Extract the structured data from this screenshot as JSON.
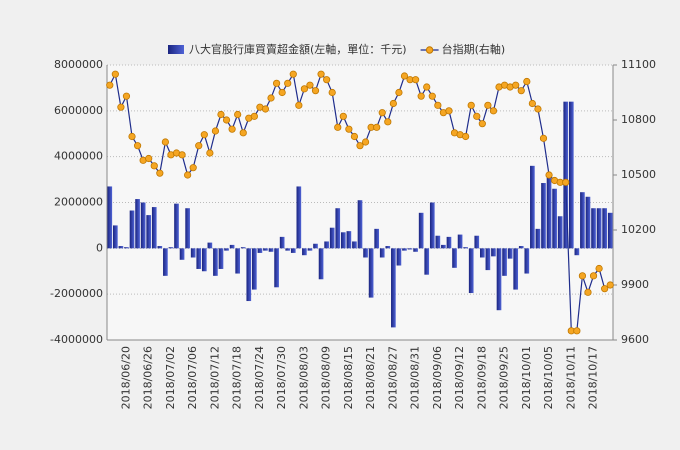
{
  "chart_data": {
    "type": "bar_line",
    "categories": [
      null,
      null,
      null,
      "2018/06/20",
      null,
      null,
      null,
      "2018/06/26",
      null,
      null,
      null,
      "2018/07/02",
      null,
      null,
      null,
      "2018/07/06",
      null,
      null,
      null,
      "2018/07/12",
      null,
      null,
      null,
      "2018/07/18",
      null,
      null,
      null,
      "2018/07/24",
      null,
      null,
      null,
      "2018/07/30",
      null,
      null,
      null,
      "2018/08/03",
      null,
      null,
      null,
      "2018/08/09",
      null,
      null,
      null,
      "2018/08/15",
      null,
      null,
      null,
      "2018/08/21",
      null,
      null,
      null,
      "2018/08/27",
      null,
      null,
      null,
      "2018/08/31",
      null,
      null,
      null,
      "2018/09/06",
      null,
      null,
      null,
      "2018/09/12",
      null,
      null,
      null,
      "2018/09/18",
      null,
      null,
      null,
      "2018/09/25",
      null,
      null,
      null,
      "2018/10/01",
      null,
      null,
      null,
      "2018/10/05",
      null,
      null,
      null,
      "2018/10/11",
      null,
      null,
      null,
      "2018/10/17",
      null,
      null,
      null
    ],
    "series": [
      {
        "name": "八大官股行庫買賣超金額(左軸，單位：千元)",
        "type": "bar",
        "color": "#2a3a9e",
        "values": [
          2700000,
          1000000,
          100000,
          50000,
          1650000,
          2150000,
          2000000,
          1450000,
          1800000,
          100000,
          -1200000,
          50000,
          1950000,
          -500000,
          1750000,
          -400000,
          -900000,
          -1000000,
          250000,
          -1200000,
          -900000,
          -100000,
          150000,
          -1100000,
          50000,
          -2300000,
          -1800000,
          -200000,
          -100000,
          -150000,
          -1700000,
          500000,
          -100000,
          -200000,
          2700000,
          -300000,
          -100000,
          200000,
          -1350000,
          300000,
          900000,
          1750000,
          700000,
          750000,
          300000,
          2100000,
          -400000,
          -2150000,
          850000,
          -400000,
          100000,
          -3450000,
          -750000,
          -100000,
          -50000,
          -150000,
          1550000,
          -1150000,
          2000000,
          550000,
          150000,
          500000,
          -850000,
          600000,
          50000,
          -1950000,
          550000,
          -400000,
          -950000,
          -350000,
          -2700000,
          -1200000,
          -450000,
          -1800000,
          100000,
          -1100000,
          3600000,
          850000,
          2850000,
          3300000,
          2600000,
          1400000,
          6400000,
          6400000,
          -300000,
          2450000,
          2250000,
          1750000,
          1750000,
          1750000,
          1550000
        ]
      },
      {
        "name": "台指期(右軸)",
        "type": "line",
        "axis": "y2",
        "color": "#1f2d8c",
        "marker_color": "#f5a623",
        "values": [
          10990,
          11050,
          10870,
          10930,
          10710,
          10660,
          10580,
          10590,
          10550,
          10510,
          10680,
          10610,
          10620,
          10610,
          10500,
          10540,
          10660,
          10720,
          10620,
          10740,
          10830,
          10800,
          10750,
          10830,
          10730,
          10810,
          10820,
          10870,
          10860,
          10920,
          11000,
          10950,
          11000,
          11050,
          10880,
          10970,
          10990,
          10960,
          11050,
          11020,
          10950,
          10760,
          10820,
          10750,
          10710,
          10660,
          10680,
          10760,
          10760,
          10840,
          10790,
          10890,
          10950,
          11040,
          11020,
          11020,
          10930,
          10980,
          10930,
          10880,
          10840,
          10850,
          10730,
          10720,
          10710,
          10880,
          10820,
          10780,
          10880,
          10850,
          10980,
          10990,
          10980,
          10990,
          10960,
          11010,
          10890,
          10860,
          10700,
          10500,
          10470,
          10460,
          10460,
          9650,
          9650,
          9950,
          9860,
          9950,
          9990,
          9880,
          9900
        ]
      }
    ],
    "ylim": [
      -4000000,
      8000000
    ],
    "yticks": [
      -4000000,
      -2000000,
      0,
      2000000,
      4000000,
      6000000,
      8000000
    ],
    "y2lim": [
      9600,
      11100
    ],
    "y2ticks": [
      9600,
      9900,
      10200,
      10500,
      10800,
      11100
    ],
    "grid": true
  }
}
